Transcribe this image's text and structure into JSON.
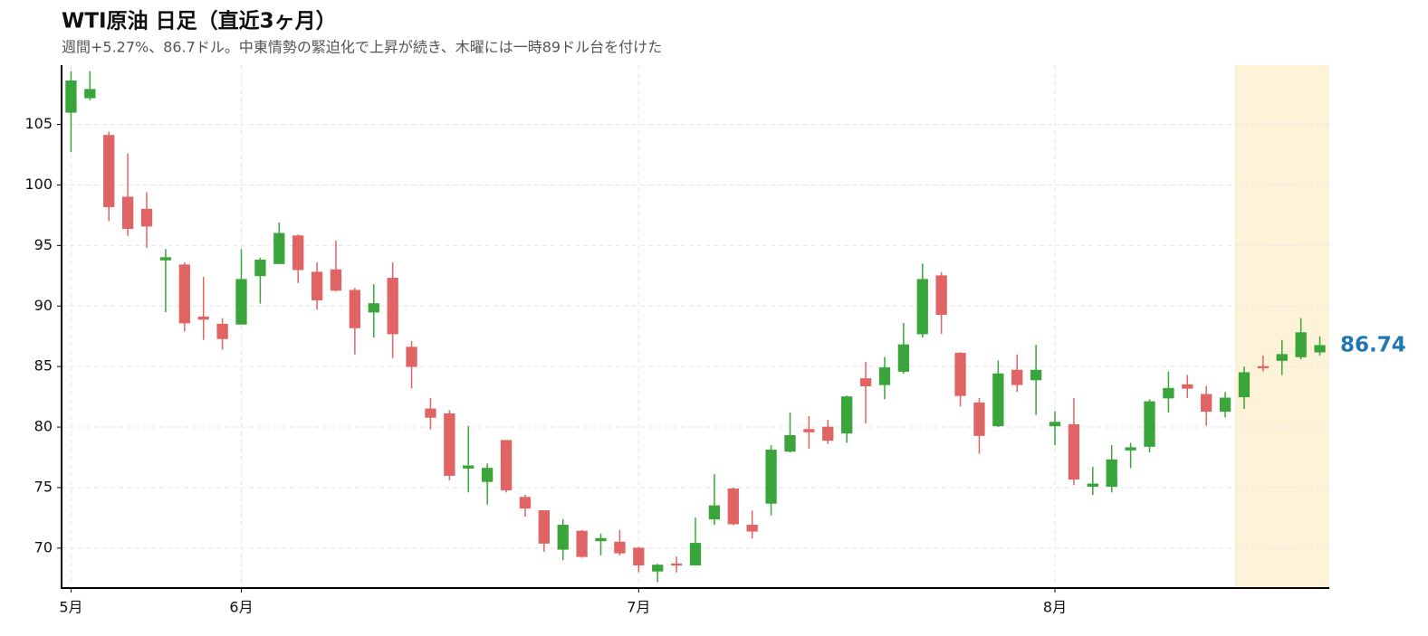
{
  "chart_data": {
    "type": "candlestick",
    "title": "WTI原油 日足（直近3ヶ月）",
    "subtitle": "週間+5.27%、86.7ドル。中東情勢の緊迫化で上昇が続き、木曜には一時89ドル台を付けた",
    "open": [
      106,
      107.2,
      104.1,
      99,
      98,
      93.8,
      93.4,
      89.1,
      88.5,
      88.5,
      92.5,
      93.5,
      95.8,
      92.8,
      93,
      91.3,
      89.5,
      92.3,
      86.6,
      81.5,
      81.1,
      76.6,
      75.5,
      78.9,
      74.2,
      73.1,
      69.9,
      71.4,
      70.6,
      70.5,
      70,
      68.1,
      68.7,
      68.6,
      72.4,
      74.9,
      71.9,
      73.7,
      78,
      79.8,
      80,
      79.5,
      84,
      83.5,
      84.6,
      87.7,
      92.5,
      86.1,
      82,
      80.1,
      84.7,
      83.9,
      80.1,
      80.2,
      75.1,
      75.1,
      78.1,
      78.4,
      82.4,
      83.5,
      82.7,
      81.3,
      82.5,
      85,
      85.5,
      85.8,
      86.2
    ],
    "high": [
      109.4,
      109.4,
      104.4,
      102.6,
      99.4,
      94.7,
      93.6,
      92.4,
      89,
      94.7,
      94,
      96.9,
      95.9,
      93.6,
      95.4,
      91.5,
      91.8,
      93.6,
      87.1,
      82.4,
      81.4,
      80.1,
      77,
      78.9,
      74.4,
      73.1,
      72.4,
      71.5,
      71.2,
      71.5,
      70.1,
      68.7,
      69.3,
      72.5,
      76.1,
      75,
      73.1,
      78.5,
      81.2,
      80.9,
      80.6,
      82.6,
      85.4,
      85.8,
      88.6,
      93.5,
      92.8,
      86.2,
      82.4,
      85.5,
      86,
      86.8,
      81.3,
      82.4,
      76.7,
      78.5,
      78.7,
      82.3,
      84.6,
      84.3,
      83.4,
      82.9,
      85,
      85.9,
      87.2,
      89,
      87.5
    ],
    "low": [
      102.7,
      107,
      97,
      95.8,
      94.8,
      89.5,
      87.9,
      87.2,
      86.4,
      88.5,
      90.2,
      93.5,
      91.9,
      89.7,
      91.2,
      86,
      87.4,
      85.7,
      83.2,
      79.8,
      75.6,
      74.6,
      73.6,
      74.6,
      72.6,
      69.7,
      69,
      69.2,
      69.4,
      69.4,
      68,
      67.2,
      68,
      68.6,
      71.9,
      71.9,
      70.8,
      72.7,
      77.9,
      78.2,
      78.6,
      78.7,
      80.3,
      82.3,
      84.4,
      87.4,
      87.7,
      81.7,
      77.8,
      80,
      82.9,
      81,
      78.5,
      75.2,
      74.4,
      74.6,
      76.6,
      77.9,
      81.2,
      82.4,
      80.1,
      80.8,
      81.5,
      84.6,
      84.3,
      85.6,
      85.9
    ],
    "close": [
      108.6,
      107.9,
      98.2,
      96.4,
      96.6,
      94,
      88.6,
      88.9,
      87.3,
      92.2,
      93.8,
      96,
      93,
      90.5,
      91.3,
      88.2,
      90.2,
      87.7,
      85,
      80.8,
      76,
      76.8,
      76.6,
      74.8,
      73.3,
      70.4,
      71.9,
      69.3,
      70.8,
      69.6,
      68.6,
      68.6,
      68.6,
      70.4,
      73.5,
      72,
      71.4,
      78.1,
      79.3,
      79.6,
      78.9,
      82.5,
      83.4,
      84.9,
      86.8,
      92.2,
      89.3,
      82.6,
      79.3,
      84.4,
      83.5,
      84.7,
      80.4,
      75.7,
      75.3,
      77.3,
      78.3,
      82.1,
      83.2,
      83.2,
      81.3,
      82.4,
      84.5,
      84.9,
      86,
      87.8,
      86.74
    ],
    "up_color": "#3aa53a",
    "down_color": "#e06464",
    "last_color": "#1f77b4",
    "highlight_range": [
      61.5,
      66.5
    ],
    "highlight_color": "#fdf3d8",
    "xlim": [
      -0.5,
      66.5
    ],
    "ylim": [
      66.7,
      109.9
    ],
    "xticks": [
      {
        "value": 0,
        "label": "5月"
      },
      {
        "value": 9,
        "label": "6月"
      },
      {
        "value": 30,
        "label": "7月"
      },
      {
        "value": 52,
        "label": "8月"
      }
    ],
    "yticks": [
      70,
      75,
      80,
      85,
      90,
      95,
      100,
      105
    ],
    "grid": true
  }
}
